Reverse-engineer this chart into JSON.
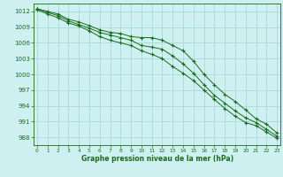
{
  "x": [
    0,
    1,
    2,
    3,
    4,
    5,
    6,
    7,
    8,
    9,
    10,
    11,
    12,
    13,
    14,
    15,
    16,
    17,
    18,
    19,
    20,
    21,
    22,
    23
  ],
  "line_max": [
    1012.5,
    1012.0,
    1011.5,
    1010.5,
    1010.0,
    1009.3,
    1008.5,
    1008.0,
    1007.8,
    1007.2,
    1007.0,
    1007.0,
    1006.5,
    1005.5,
    1004.5,
    1002.5,
    1000.0,
    998.0,
    996.2,
    994.8,
    993.2,
    991.5,
    990.5,
    988.8
  ],
  "line_mid": [
    1012.5,
    1011.8,
    1011.2,
    1010.2,
    1009.5,
    1008.8,
    1008.0,
    1007.5,
    1007.0,
    1006.5,
    1005.5,
    1005.2,
    1004.8,
    1003.5,
    1002.0,
    1000.2,
    998.0,
    996.0,
    994.5,
    993.0,
    991.7,
    990.8,
    989.5,
    988.2
  ],
  "line_min": [
    1012.3,
    1011.5,
    1010.8,
    1009.8,
    1009.2,
    1008.3,
    1007.2,
    1006.5,
    1006.0,
    1005.5,
    1004.5,
    1003.8,
    1003.0,
    1001.5,
    1000.2,
    998.8,
    997.0,
    995.2,
    993.5,
    992.0,
    990.8,
    990.2,
    989.0,
    987.8
  ],
  "bg_color": "#cff0f0",
  "grid_color": "#aadddd",
  "line_color": "#1a6b1a",
  "xlabel": "Graphe pression niveau de la mer (hPa)",
  "xlabel_color": "#1a6b1a",
  "tick_color": "#1a6b1a",
  "ylim": [
    986.5,
    1013.5
  ],
  "yticks": [
    988,
    991,
    994,
    997,
    1000,
    1003,
    1006,
    1009,
    1012
  ],
  "xlim": [
    -0.3,
    23.3
  ],
  "xticks": [
    0,
    1,
    2,
    3,
    4,
    5,
    6,
    7,
    8,
    9,
    10,
    11,
    12,
    13,
    14,
    15,
    16,
    17,
    18,
    19,
    20,
    21,
    22,
    23
  ]
}
